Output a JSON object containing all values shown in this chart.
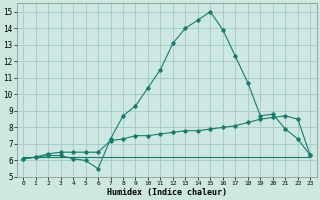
{
  "xlabel": "Humidex (Indice chaleur)",
  "ylabel": "",
  "bg_color": "#cce8e0",
  "grid_color": "#aacccc",
  "line_color": "#1a7a6e",
  "xlim": [
    -0.5,
    23.5
  ],
  "ylim": [
    5.0,
    15.5
  ],
  "xticks": [
    0,
    1,
    2,
    3,
    4,
    5,
    6,
    7,
    8,
    9,
    10,
    11,
    12,
    13,
    14,
    15,
    16,
    17,
    18,
    19,
    20,
    21,
    22,
    23
  ],
  "yticks": [
    5,
    6,
    7,
    8,
    9,
    10,
    11,
    12,
    13,
    14,
    15
  ],
  "line1_x": [
    0,
    1,
    2,
    3,
    4,
    5,
    6,
    7,
    8,
    9,
    10,
    11,
    12,
    13,
    14,
    15,
    16,
    17,
    18,
    19,
    20,
    21,
    22,
    23
  ],
  "line1_y": [
    6.1,
    6.2,
    6.3,
    6.3,
    6.1,
    6.0,
    5.5,
    7.3,
    8.7,
    9.3,
    10.4,
    11.5,
    13.1,
    14.0,
    14.5,
    15.0,
    13.9,
    12.3,
    10.7,
    8.7,
    8.8,
    7.9,
    7.3,
    6.3
  ],
  "line2_x": [
    0,
    1,
    2,
    3,
    4,
    5,
    6,
    7,
    8,
    9,
    10,
    11,
    12,
    13,
    14,
    15,
    16,
    17,
    18,
    19,
    20,
    21,
    22,
    23
  ],
  "line2_y": [
    6.1,
    6.2,
    6.4,
    6.5,
    6.5,
    6.5,
    6.5,
    7.2,
    7.3,
    7.5,
    7.5,
    7.6,
    7.7,
    7.8,
    7.8,
    7.9,
    8.0,
    8.1,
    8.3,
    8.5,
    8.6,
    8.7,
    8.5,
    6.3
  ],
  "line3_x": [
    0,
    23
  ],
  "line3_y": [
    6.2,
    6.2
  ]
}
